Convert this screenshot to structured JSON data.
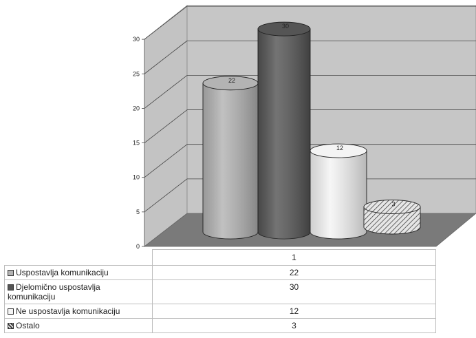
{
  "chart_data": {
    "type": "bar",
    "style": "3d-cylinder",
    "categories": [
      "1"
    ],
    "series": [
      {
        "name": "Uspostavlja komunikaciju",
        "values": [
          22
        ],
        "color": "#b3b3b3"
      },
      {
        "name": "Djelomično uspostavlja komunikaciju",
        "values": [
          30
        ],
        "color": "#555555"
      },
      {
        "name": "Ne uspostavlja komunikaciju",
        "values": [
          12
        ],
        "color": "#f4f4f4"
      },
      {
        "name": "Ostalo",
        "values": [
          3
        ],
        "color": "#dcdcdc",
        "pattern": "hatch"
      }
    ],
    "ylim": [
      0,
      30
    ],
    "yticks": [
      0,
      5,
      10,
      15,
      20,
      25,
      30
    ],
    "grid": true,
    "legend": "data-table-below",
    "title": "",
    "xlabel": "",
    "ylabel": ""
  },
  "table": {
    "header": "1"
  }
}
